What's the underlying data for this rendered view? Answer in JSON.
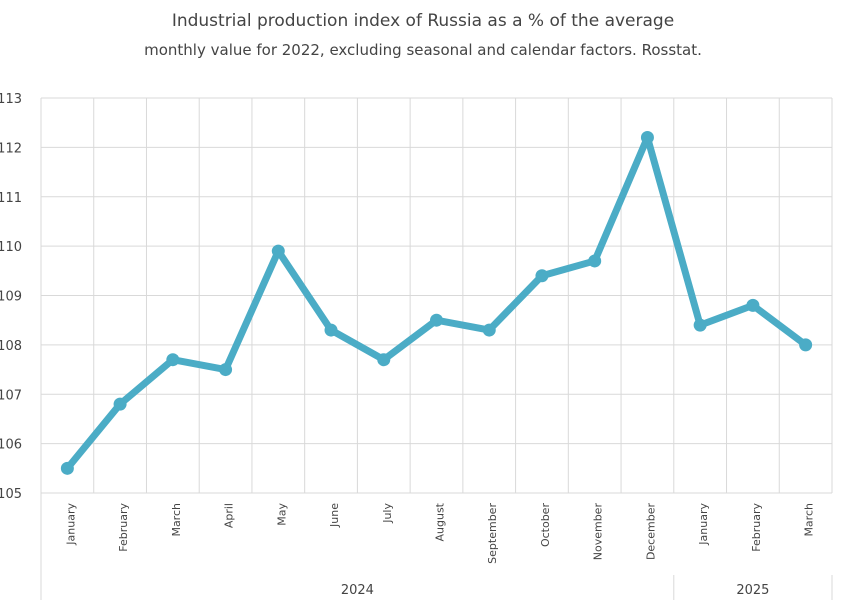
{
  "chart_data": {
    "type": "line",
    "title": "Industrial production index of Russia as a % of the average",
    "subtitle": "monthly value for 2022, excluding seasonal and calendar factors. Rosstat.",
    "xlabel": "",
    "ylabel": "",
    "ylim": [
      105,
      113
    ],
    "yticks": [
      105,
      106,
      107,
      108,
      109,
      110,
      111,
      112,
      113
    ],
    "grid": true,
    "categories": [
      "January",
      "February",
      "March",
      "April",
      "May",
      "June",
      "July",
      "August",
      "September",
      "October",
      "November",
      "December",
      "January",
      "February",
      "March"
    ],
    "groups": [
      {
        "label": "2024",
        "count": 12
      },
      {
        "label": "2025",
        "count": 3
      }
    ],
    "series": [
      {
        "values": [
          105.5,
          106.8,
          107.7,
          107.5,
          109.9,
          108.3,
          107.7,
          108.5,
          108.3,
          109.4,
          109.7,
          112.2,
          108.4,
          108.8,
          108.0
        ],
        "color": "#4bacc6"
      }
    ]
  },
  "colors": {
    "line": "#4bacc6",
    "grid": "#d9d9d9",
    "text": "#444444"
  }
}
